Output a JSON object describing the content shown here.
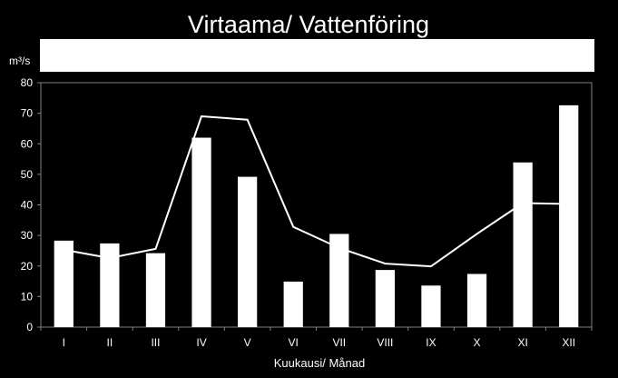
{
  "chart_data": {
    "type": "bar",
    "title": "Virtaama/ Vattenföring",
    "ylabel_unit": "m³/s",
    "xlabel": "Kuukausi/ Månad",
    "categories": [
      "I",
      "II",
      "III",
      "IV",
      "V",
      "VI",
      "VII",
      "VIII",
      "IX",
      "X",
      "XI",
      "XII"
    ],
    "series": [
      {
        "type": "bar",
        "values": [
          28.3,
          27.4,
          24.2,
          62.0,
          49.2,
          14.9,
          30.5,
          18.7,
          13.6,
          17.4,
          53.9,
          72.6
        ]
      },
      {
        "type": "line",
        "values": [
          25.3,
          22.6,
          25.6,
          69.0,
          67.9,
          32.8,
          25.9,
          20.8,
          19.9,
          30.5,
          40.6,
          40.3
        ]
      }
    ],
    "ylim": [
      0,
      80
    ],
    "yticks": [
      0,
      10,
      20,
      30,
      40,
      50,
      60,
      70,
      80
    ],
    "grid": false,
    "legend": "none",
    "colors": {
      "background": "#000000",
      "bars": "#ffffff",
      "line": "#ffffff",
      "axis": "#808080",
      "legend_box": "#ffffff"
    }
  }
}
